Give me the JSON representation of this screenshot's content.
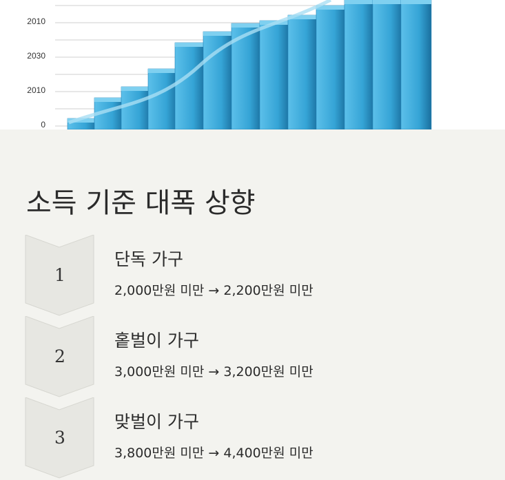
{
  "image": {
    "axis_labels": [
      "2010",
      "2030",
      "2010",
      "0"
    ]
  },
  "title": "소득 기준 대폭 상향",
  "items": [
    {
      "number": "1",
      "heading": "단독 가구",
      "detail": "2,000만원 미만 → 2,200만원 미만"
    },
    {
      "number": "2",
      "heading": "홑벌이 가구",
      "detail": "3,000만원 미만 → 3,200만원 미만"
    },
    {
      "number": "3",
      "heading": "맞벌이 가구",
      "detail": "3,800만원 미만 → 4,400만원 미만"
    }
  ]
}
